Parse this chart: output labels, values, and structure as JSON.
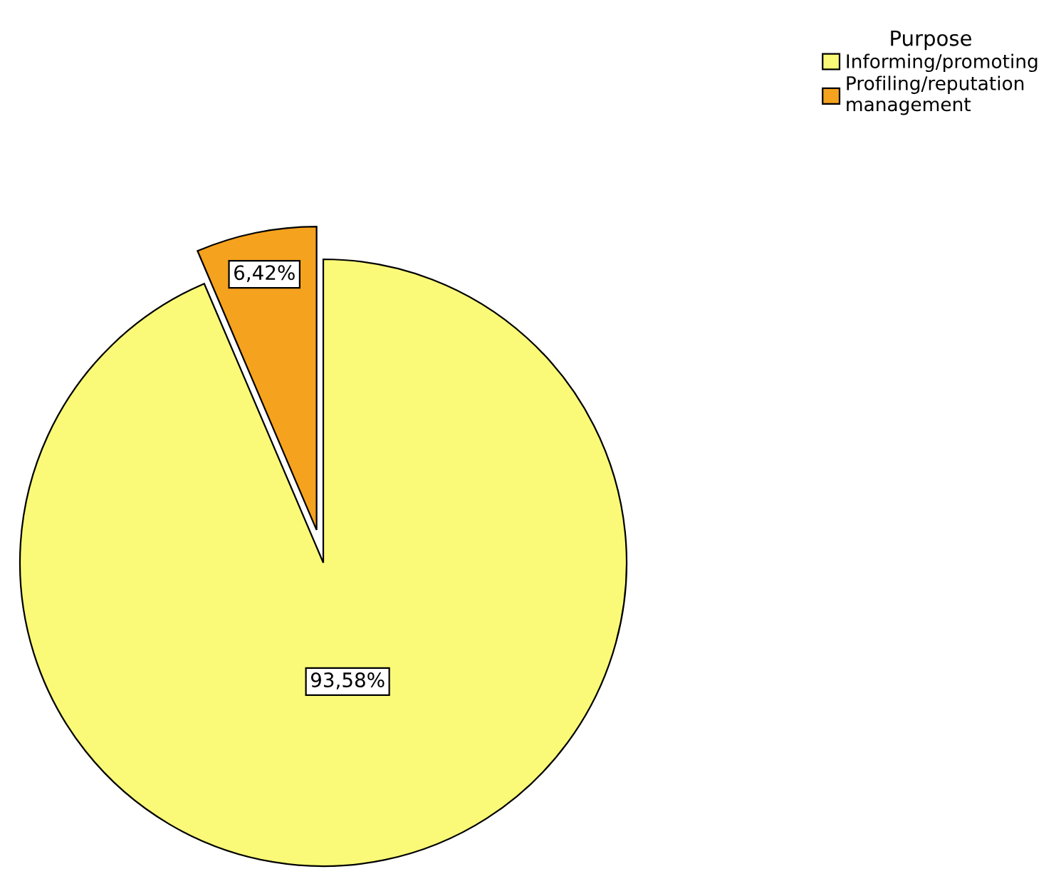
{
  "chart_data": {
    "type": "pie",
    "legend_title": "Purpose",
    "categories": [
      "Informing/promoting",
      "Profiling/reputation\nmanagement"
    ],
    "values": [
      93.58,
      6.42
    ],
    "value_labels": [
      "93,58%",
      "6,42%"
    ],
    "colors": [
      "#fafa78",
      "#f5a21e"
    ],
    "legend": "top right"
  }
}
